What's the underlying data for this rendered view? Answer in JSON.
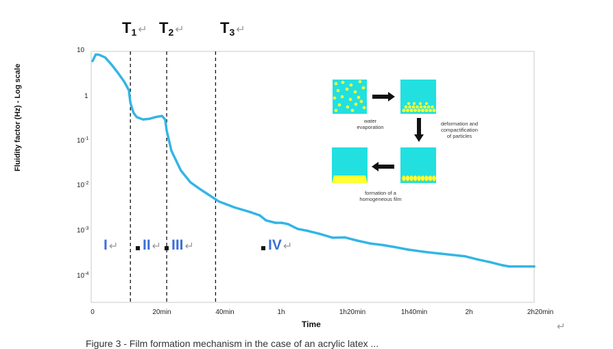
{
  "chart_data": {
    "type": "line",
    "title": "",
    "xlabel": "Time",
    "ylabel": "Fluidity factor (Hz) - Log scale",
    "yscale": "log",
    "ylim": [
      4e-05,
      10
    ],
    "xlim": [
      0,
      140
    ],
    "x_tick_labels": [
      "0",
      "20min",
      "40min",
      "1h",
      "1h20min",
      "1h40min",
      "2h",
      "2h20min"
    ],
    "x_tick_values": [
      0,
      20,
      40,
      60,
      80,
      100,
      120,
      140
    ],
    "y_tick_labels": [
      {
        "base": "10",
        "exp": ""
      },
      {
        "base": "1",
        "exp": ""
      },
      {
        "base": "10",
        "exp": "-1"
      },
      {
        "base": "10",
        "exp": "-2"
      },
      {
        "base": "10",
        "exp": "-3"
      },
      {
        "base": "10",
        "exp": "-4"
      }
    ],
    "y_tick_values": [
      10,
      1,
      0.1,
      0.01,
      0.001,
      0.0001
    ],
    "series": [
      {
        "name": "Fluidity factor",
        "color": "#33b5e5",
        "x": [
          0,
          1,
          2,
          4,
          6,
          8,
          10,
          11.5,
          12,
          13,
          14,
          16,
          18,
          20,
          22,
          23,
          23.5,
          25,
          28,
          31,
          34,
          37,
          40,
          45,
          50,
          53,
          55,
          58,
          60,
          62,
          65,
          68,
          72,
          76,
          80,
          84,
          88,
          92,
          96,
          100,
          105,
          110,
          114,
          118,
          122,
          126,
          130,
          132,
          136,
          140
        ],
        "y": [
          6.0,
          8.4,
          8.3,
          7.2,
          5.0,
          3.3,
          2.1,
          1.35,
          0.7,
          0.42,
          0.34,
          0.3,
          0.31,
          0.34,
          0.36,
          0.3,
          0.17,
          0.06,
          0.022,
          0.012,
          0.0085,
          0.0062,
          0.0045,
          0.0033,
          0.0026,
          0.0022,
          0.0017,
          0.0015,
          0.0015,
          0.0014,
          0.0011,
          0.001,
          0.00085,
          0.0007,
          0.00071,
          0.0006,
          0.00052,
          0.00048,
          0.00043,
          0.00038,
          0.00034,
          0.00031,
          0.00029,
          0.00027,
          0.00023,
          0.0002,
          0.00017,
          0.00016,
          0.00016,
          0.00016
        ]
      }
    ],
    "vertical_lines": [
      {
        "label": "T",
        "sub": "1",
        "x": 12
      },
      {
        "label": "T",
        "sub": "2",
        "x": 23.5
      },
      {
        "label": "T",
        "sub": "3",
        "x": 39
      }
    ],
    "phases": [
      {
        "label": "I",
        "dot": false
      },
      {
        "label": "II",
        "dot": true
      },
      {
        "label": "III",
        "dot": true
      },
      {
        "label": "IV",
        "dot": true
      }
    ],
    "return_mark": "↵",
    "inset": {
      "caption_top": "water\nevaporation",
      "caption_right": "deformation and\ncompactification\nof particles",
      "caption_bottom": "formation of a\nhomogeneous film",
      "box_color": "#22e0e0",
      "particle_color": "#ffff33"
    }
  },
  "footer_text": "Figure 3 - Film formation mechanism in the case of an acrylic latex ..."
}
